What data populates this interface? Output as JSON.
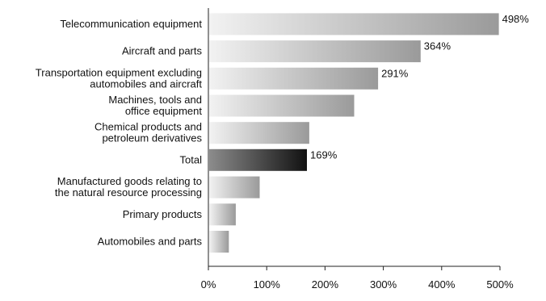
{
  "chart_data": {
    "type": "bar",
    "orientation": "horizontal",
    "categories": [
      [
        "Telecommunication equipment"
      ],
      [
        "Aircraft and parts"
      ],
      [
        "Transportation equipment excluding",
        "automobiles and aircraft"
      ],
      [
        "Machines, tools and",
        "office equipment"
      ],
      [
        "Chemical products and",
        "petroleum derivatives"
      ],
      [
        "Total"
      ],
      [
        "Manufactured goods relating to",
        "the natural resource processing"
      ],
      [
        "Primary products"
      ],
      [
        "Automobiles and parts"
      ]
    ],
    "values": [
      498,
      364,
      291,
      250,
      173,
      169,
      88,
      47,
      35
    ],
    "data_labels": [
      "498%",
      "364%",
      "291%",
      "",
      "",
      "169%",
      "",
      "",
      ""
    ],
    "highlighted": [
      false,
      false,
      false,
      false,
      false,
      true,
      false,
      false,
      false
    ],
    "xlim": [
      0,
      500
    ],
    "xticks": [
      0,
      100,
      200,
      300,
      400,
      500
    ],
    "xtick_labels": [
      "0%",
      "100%",
      "200%",
      "300%",
      "400%",
      "500%"
    ],
    "grid": false,
    "colors": {
      "bar_light": "#f2f2f2",
      "bar_dark": "#9a9a9a",
      "highlight_light": "#8c8c8c",
      "highlight_dark": "#111111",
      "axis": "#222222"
    }
  }
}
